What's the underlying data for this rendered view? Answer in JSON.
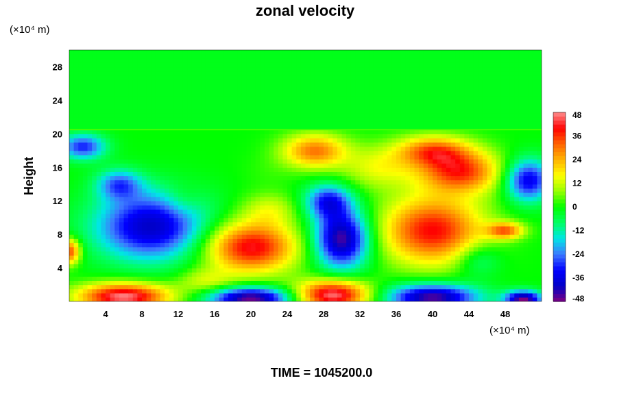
{
  "chart_data": {
    "type": "heatmap",
    "title": "zonal velocity",
    "xlabel": "",
    "ylabel": "Height",
    "x_unit": "(×10⁴ m)",
    "y_unit": "(×10⁴ m)",
    "x_ticks": [
      4,
      8,
      12,
      16,
      20,
      24,
      28,
      32,
      36,
      40,
      44,
      48
    ],
    "y_ticks": [
      4,
      8,
      12,
      16,
      20,
      24,
      28
    ],
    "xlim": [
      0,
      52
    ],
    "ylim": [
      0,
      30
    ],
    "colorbar": {
      "ticks": [
        48,
        36,
        24,
        12,
        0,
        -12,
        -24,
        -36,
        -48
      ],
      "range": [
        -48,
        48
      ],
      "colormap": [
        "#800080",
        "#0000c8",
        "#0000ff",
        "#3c78ff",
        "#00e6e6",
        "#00ff64",
        "#00ff00",
        "#96ff00",
        "#ffff00",
        "#ffb400",
        "#ff6400",
        "#ff0000",
        "#ff8c8c"
      ]
    },
    "background_value": -2,
    "upper_layer_start": 20.5,
    "blobs": [
      {
        "x": 9,
        "y": 9,
        "rx": 6,
        "ry": 4,
        "value": -40
      },
      {
        "x": 5.5,
        "y": 14,
        "rx": 2.5,
        "ry": 1.8,
        "value": -24
      },
      {
        "x": 1.5,
        "y": 18.5,
        "rx": 2.5,
        "ry": 1.5,
        "value": -30
      },
      {
        "x": 20,
        "y": 6.5,
        "rx": 5,
        "ry": 3,
        "value": 42
      },
      {
        "x": 22,
        "y": 11,
        "rx": 3,
        "ry": 2,
        "value": 12
      },
      {
        "x": 30,
        "y": 7.5,
        "rx": 3,
        "ry": 3.5,
        "value": -46
      },
      {
        "x": 28.5,
        "y": 12,
        "rx": 2.5,
        "ry": 2,
        "value": -30
      },
      {
        "x": 40,
        "y": 8.5,
        "rx": 5.5,
        "ry": 4,
        "value": 40
      },
      {
        "x": 43,
        "y": 15.5,
        "rx": 4.5,
        "ry": 2.5,
        "value": 36
      },
      {
        "x": 40,
        "y": 18,
        "rx": 4,
        "ry": 1.8,
        "value": 30
      },
      {
        "x": 27,
        "y": 18,
        "rx": 3.5,
        "ry": 2,
        "value": 30
      },
      {
        "x": 34,
        "y": 16,
        "rx": 4,
        "ry": 2.5,
        "value": 14
      },
      {
        "x": 50.5,
        "y": 14.5,
        "rx": 2.5,
        "ry": 2.5,
        "value": -36
      },
      {
        "x": 48,
        "y": 8.5,
        "rx": 2,
        "ry": 1,
        "value": 30
      },
      {
        "x": 45,
        "y": 5,
        "rx": 2.5,
        "ry": 2,
        "value": -12
      },
      {
        "x": 6,
        "y": 0.6,
        "rx": 5,
        "ry": 1.6,
        "value": 48
      },
      {
        "x": 20,
        "y": 0.4,
        "rx": 4.5,
        "ry": 1.3,
        "value": -48
      },
      {
        "x": 29,
        "y": 0.8,
        "rx": 4,
        "ry": 1.8,
        "value": 48
      },
      {
        "x": 40,
        "y": 0.5,
        "rx": 5,
        "ry": 1.6,
        "value": -46
      },
      {
        "x": 50,
        "y": 0.3,
        "rx": 2,
        "ry": 1,
        "value": -48
      },
      {
        "x": 15,
        "y": 2.5,
        "rx": 3,
        "ry": 1.5,
        "value": 12
      },
      {
        "x": 0,
        "y": 6,
        "rx": 1.2,
        "ry": 1.5,
        "value": 36
      },
      {
        "x": 12.5,
        "y": 12,
        "rx": 2,
        "ry": 2,
        "value": 6
      },
      {
        "x": 22,
        "y": 15.5,
        "rx": 3,
        "ry": 2,
        "value": 2
      }
    ]
  },
  "footer": {
    "time_text": "TIME = 1045200.0"
  }
}
